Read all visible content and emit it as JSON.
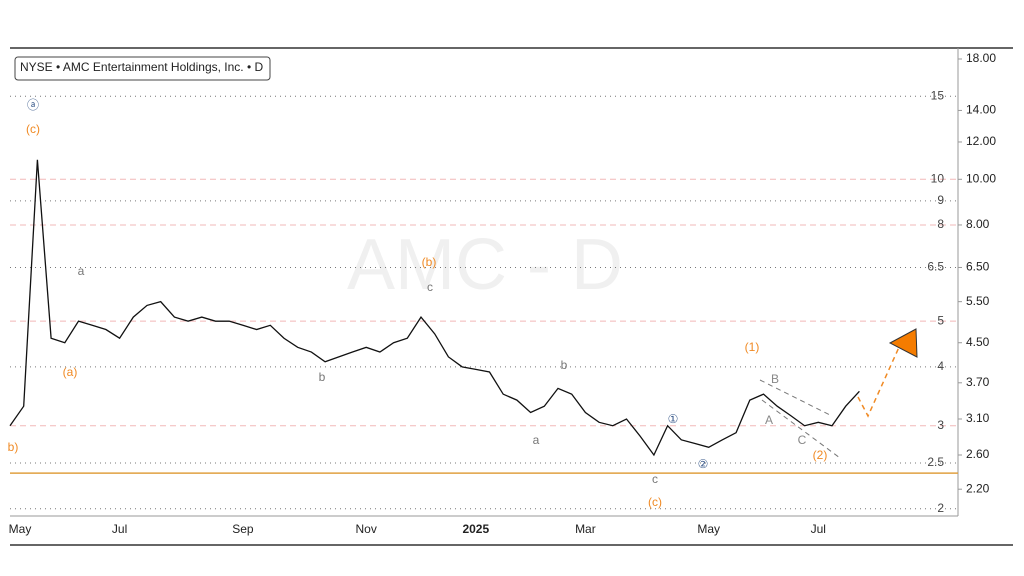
{
  "chart_data": {
    "type": "line",
    "header": "NYSE • AMC Entertainment Holdings, Inc. • D",
    "watermark": "AMC - D",
    "log_scale": true,
    "color": "#111111",
    "categories": [
      "May",
      null,
      null,
      null,
      null,
      null,
      null,
      null,
      "Jul",
      null,
      null,
      null,
      null,
      null,
      null,
      null,
      null,
      "Sep",
      null,
      null,
      null,
      null,
      null,
      null,
      null,
      null,
      "Nov",
      null,
      null,
      null,
      null,
      null,
      null,
      null,
      "2025",
      null,
      null,
      null,
      null,
      null,
      null,
      null,
      "Mar",
      null,
      null,
      null,
      null,
      null,
      null,
      null,
      null,
      "May",
      null,
      null,
      null,
      null,
      null,
      null,
      null,
      "Jul",
      null,
      null,
      null
    ],
    "values": [
      3.0,
      3.3,
      11.0,
      4.6,
      4.5,
      5.0,
      4.9,
      4.8,
      4.6,
      5.1,
      5.4,
      5.5,
      5.1,
      5.0,
      5.1,
      5.0,
      5.0,
      4.9,
      4.8,
      4.9,
      4.6,
      4.4,
      4.3,
      4.1,
      4.2,
      4.3,
      4.4,
      4.3,
      4.5,
      4.6,
      5.1,
      4.7,
      4.2,
      4.0,
      3.95,
      3.9,
      3.5,
      3.4,
      3.2,
      3.3,
      3.6,
      3.5,
      3.2,
      3.05,
      3.0,
      3.1,
      2.85,
      2.6,
      3.0,
      2.8,
      2.75,
      2.7,
      2.8,
      2.9,
      3.4,
      3.5,
      3.3,
      3.15,
      3.0,
      3.05,
      3.0,
      3.3,
      3.55
    ],
    "ylim": [
      1.93,
      18.9
    ],
    "yticks": [
      {
        "value": 18,
        "label": "18.00"
      },
      {
        "value": 14,
        "label": "14.00"
      },
      {
        "value": 12,
        "label": "12.00"
      },
      {
        "value": 10,
        "label": "10.00"
      },
      {
        "value": 8,
        "label": "8.00"
      },
      {
        "value": 6.5,
        "label": "6.50"
      },
      {
        "value": 5.5,
        "label": "5.50"
      },
      {
        "value": 4.5,
        "label": "4.50"
      },
      {
        "value": 3.7,
        "label": "3.70"
      },
      {
        "value": 3.1,
        "label": "3.10"
      },
      {
        "value": 2.6,
        "label": "2.60"
      },
      {
        "value": 2.2,
        "label": "2.20"
      }
    ],
    "levels": [
      {
        "value": 15,
        "style": "dotted"
      },
      {
        "value": 10,
        "style": "dashed"
      },
      {
        "value": 9,
        "style": "dotted"
      },
      {
        "value": 8,
        "style": "dashed"
      },
      {
        "value": 6.5,
        "style": "dotted"
      },
      {
        "value": 5,
        "style": "dashed"
      },
      {
        "value": 4,
        "style": "dotted"
      },
      {
        "value": 3,
        "style": "dashed"
      },
      {
        "value": 2.5,
        "style": "dotted"
      },
      {
        "value": 2,
        "style": "dotted"
      }
    ],
    "support": 2.38,
    "annotations": [
      {
        "text": "ⓐ",
        "color": "#3b5b8c"
      },
      {
        "text": "(c)",
        "color": "#f08a24"
      },
      {
        "text": "a",
        "color": "#777777"
      },
      {
        "text": "(a)",
        "color": "#f08a24"
      },
      {
        "text": "b",
        "color": "#777777"
      },
      {
        "text": "(b)",
        "color": "#f08a24"
      },
      {
        "text": "c",
        "color": "#777777"
      },
      {
        "text": "b",
        "color": "#777777"
      },
      {
        "text": "a",
        "color": "#777777"
      },
      {
        "text": "c",
        "color": "#777777"
      },
      {
        "text": "(c)",
        "color": "#f08a24"
      },
      {
        "text": "①",
        "color": "#3b5b8c"
      },
      {
        "text": "②",
        "color": "#3b5b8c"
      },
      {
        "text": "(1)",
        "color": "#f08a24"
      },
      {
        "text": "B",
        "color": "#888888"
      },
      {
        "text": "A",
        "color": "#888888"
      },
      {
        "text": "C",
        "color": "#888888"
      },
      {
        "text": "(2)",
        "color": "#f08a24"
      },
      {
        "text": "b)",
        "color": "#f08a24"
      }
    ]
  }
}
